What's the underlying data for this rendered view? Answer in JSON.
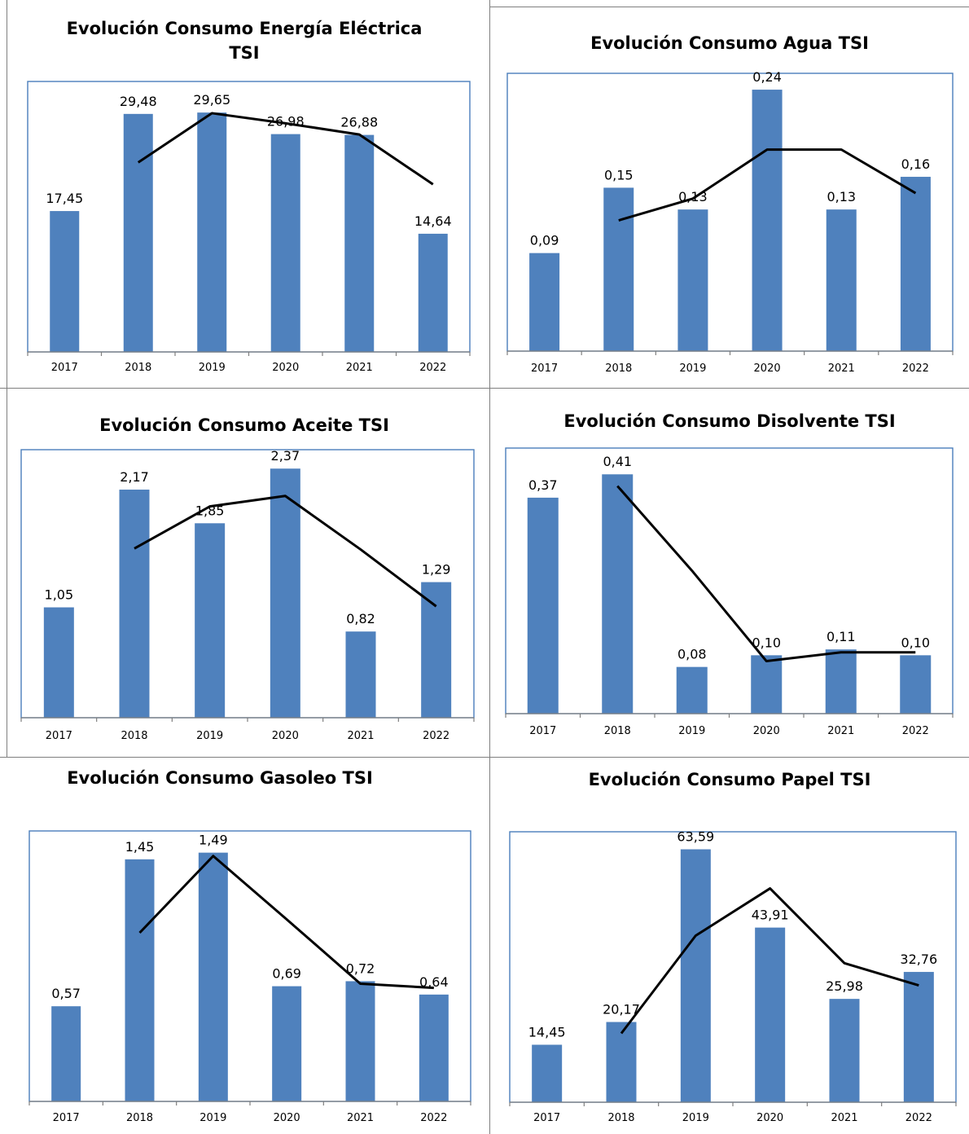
{
  "chart_data": [
    {
      "type": "bar",
      "title": "Evolución Consumo Energía Eléctrica TSI",
      "title_lines": [
        "Evolución Consumo Energía Eléctrica",
        "TSI"
      ],
      "categories": [
        "2017",
        "2018",
        "2019",
        "2020",
        "2021",
        "2022"
      ],
      "values": [
        17.45,
        29.48,
        29.65,
        26.98,
        26.88,
        14.64
      ],
      "value_labels": [
        "17,45",
        "29,48",
        "29,65",
        "26,98",
        "26,88",
        "14,64"
      ],
      "trendline": {
        "type": "moving-average-2",
        "values": [
          23.47,
          29.57,
          28.32,
          26.93,
          20.76
        ]
      },
      "ylim": [
        0,
        33.5
      ],
      "grid": false,
      "legend": "none",
      "colors": {
        "bar": "#4f81bd",
        "trend": "#000000",
        "plot_border": "#4a7ebb"
      }
    },
    {
      "type": "bar",
      "title": "Evolución Consumo Agua TSI",
      "title_lines": [
        "Evolución Consumo Agua TSI"
      ],
      "categories": [
        "2017",
        "2018",
        "2019",
        "2020",
        "2021",
        "2022"
      ],
      "values": [
        0.09,
        0.15,
        0.13,
        0.24,
        0.13,
        0.16
      ],
      "value_labels": [
        "0,09",
        "0,15",
        "0,13",
        "0,24",
        "0,13",
        "0,16"
      ],
      "trendline": {
        "type": "moving-average-2",
        "values": [
          0.12,
          0.14,
          0.185,
          0.185,
          0.145
        ]
      },
      "ylim": [
        0,
        0.255
      ],
      "grid": false,
      "legend": "none",
      "colors": {
        "bar": "#4f81bd",
        "trend": "#000000",
        "plot_border": "#4a7ebb"
      }
    },
    {
      "type": "bar",
      "title": "Evolución Consumo Aceite TSI",
      "title_lines": [
        "Evolución Consumo Aceite TSI"
      ],
      "categories": [
        "2017",
        "2018",
        "2019",
        "2020",
        "2021",
        "2022"
      ],
      "values": [
        1.05,
        2.17,
        1.85,
        2.37,
        0.82,
        1.29
      ],
      "value_labels": [
        "1,05",
        "2,17",
        "1,85",
        "2,37",
        "0,82",
        "1,29"
      ],
      "trendline": {
        "type": "moving-average-2",
        "values": [
          1.61,
          2.01,
          2.11,
          1.6,
          1.06
        ]
      },
      "ylim": [
        0,
        2.55
      ],
      "grid": false,
      "legend": "none",
      "colors": {
        "bar": "#4f81bd",
        "trend": "#000000",
        "plot_border": "#4a7ebb"
      }
    },
    {
      "type": "bar",
      "title": "Evolución Consumo Disolvente TSI",
      "title_lines": [
        "Evolución Consumo Disolvente TSI"
      ],
      "categories": [
        "2017",
        "2018",
        "2019",
        "2020",
        "2021",
        "2022"
      ],
      "values": [
        0.37,
        0.41,
        0.08,
        0.1,
        0.11,
        0.1
      ],
      "value_labels": [
        "0,37",
        "0,41",
        "0,08",
        "0,10",
        "0,11",
        "0,10"
      ],
      "trendline": {
        "type": "moving-average-2",
        "values": [
          0.39,
          0.245,
          0.09,
          0.105,
          0.105
        ]
      },
      "ylim": [
        0,
        0.455
      ],
      "grid": false,
      "legend": "none",
      "colors": {
        "bar": "#4f81bd",
        "trend": "#000000",
        "plot_border": "#4a7ebb"
      }
    },
    {
      "type": "bar",
      "title": "Evolución Consumo Gasoleo TSI",
      "title_lines": [
        "Evolución Consumo Gasoleo TSI"
      ],
      "categories": [
        "2017",
        "2018",
        "2019",
        "2020",
        "2021",
        "2022"
      ],
      "values": [
        0.57,
        1.45,
        1.49,
        0.69,
        0.72,
        0.64
      ],
      "value_labels": [
        "0,57",
        "1,45",
        "1,49",
        "0,69",
        "0,72",
        "0,64"
      ],
      "trendline": {
        "type": "moving-average-2",
        "values": [
          1.01,
          1.47,
          1.09,
          0.705,
          0.68
        ]
      },
      "ylim": [
        0,
        1.62
      ],
      "grid": false,
      "legend": "none",
      "colors": {
        "bar": "#4f81bd",
        "trend": "#000000",
        "plot_border": "#4a7ebb"
      }
    },
    {
      "type": "bar",
      "title": "Evolución Consumo Papel TSI",
      "title_lines": [
        "Evolución Consumo Papel TSI"
      ],
      "categories": [
        "2017",
        "2018",
        "2019",
        "2020",
        "2021",
        "2022"
      ],
      "values": [
        14.45,
        20.17,
        63.59,
        43.91,
        25.98,
        32.76
      ],
      "value_labels": [
        "14,45",
        "20,17",
        "63,59",
        "43,91",
        "25,98",
        "32,76"
      ],
      "trendline": {
        "type": "moving-average-2",
        "values": [
          17.31,
          41.88,
          53.75,
          34.95,
          29.37
        ]
      },
      "ylim": [
        0,
        68
      ],
      "grid": false,
      "legend": "none",
      "colors": {
        "bar": "#4f81bd",
        "trend": "#000000",
        "plot_border": "#4a7ebb"
      }
    }
  ]
}
